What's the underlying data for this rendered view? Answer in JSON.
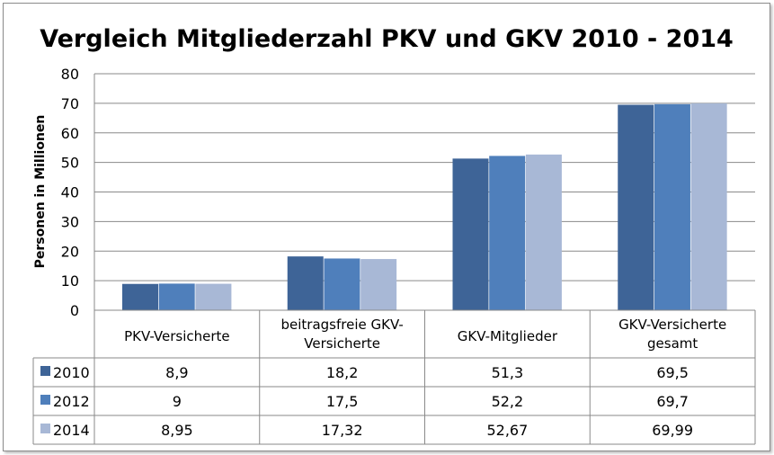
{
  "chart_data": {
    "type": "bar",
    "title": "Vergleich Mitgliederzahl PKV und GKV 2010 - 2014",
    "xlabel": "",
    "ylabel": "Personen in Millionen",
    "ylim": [
      0,
      80
    ],
    "yticks": [
      0,
      10,
      20,
      30,
      40,
      50,
      60,
      70,
      80
    ],
    "grid": true,
    "legend": "data-table-left",
    "categories": [
      [
        "PKV-Versicherte"
      ],
      [
        "beitragsfreie GKV-",
        "Versicherte"
      ],
      [
        "GKV-Mitglieder"
      ],
      [
        "GKV-Versicherte",
        "gesamt"
      ]
    ],
    "series": [
      {
        "name": "2010",
        "color": "#3e6497",
        "values": [
          8.9,
          18.2,
          51.3,
          69.5
        ],
        "labels": [
          "8,9",
          "18,2",
          "51,3",
          "69,5"
        ]
      },
      {
        "name": "2012",
        "color": "#4f7fbb",
        "values": [
          9,
          17.5,
          52.2,
          69.7
        ],
        "labels": [
          "9",
          "17,5",
          "52,2",
          "69,7"
        ]
      },
      {
        "name": "2014",
        "color": "#a8b8d6",
        "values": [
          8.95,
          17.32,
          52.67,
          69.99
        ],
        "labels": [
          "8,95",
          "17,32",
          "52,67",
          "69,99"
        ]
      }
    ]
  }
}
